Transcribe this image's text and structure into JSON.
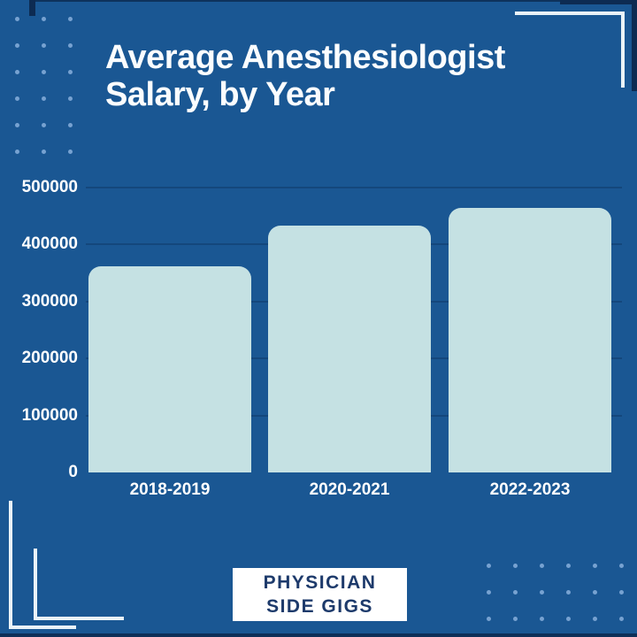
{
  "page": {
    "background_color": "#1A5793",
    "accent_navy": "#0D2B52",
    "dot_color": "#7FA8D6",
    "bracket_color": "#EAF3F8",
    "text_white": "#FFFFFF"
  },
  "header": {
    "title_line1": "Average Anesthesiologist",
    "title_line2": "Salary, by Year"
  },
  "chart_data": {
    "type": "bar",
    "title": "Average Anesthesiologist Salary, by Year",
    "categories": [
      "2018-2019",
      "2020-2021",
      "2022-2023"
    ],
    "values": [
      362000,
      434000,
      465000
    ],
    "xlabel": "",
    "ylabel": "",
    "ylim": [
      0,
      500000
    ],
    "ytick_interval": 100000,
    "ytick_labels": [
      "0",
      "100000",
      "200000",
      "300000",
      "400000",
      "500000"
    ],
    "grid": true,
    "legend": "none",
    "bar_color": "#C5E1E3"
  },
  "footer_badge": {
    "line1": "PHYSICIAN",
    "line2": "SIDE GIGS",
    "background": "#FFFFFF",
    "text_color": "#1D3A6B"
  }
}
